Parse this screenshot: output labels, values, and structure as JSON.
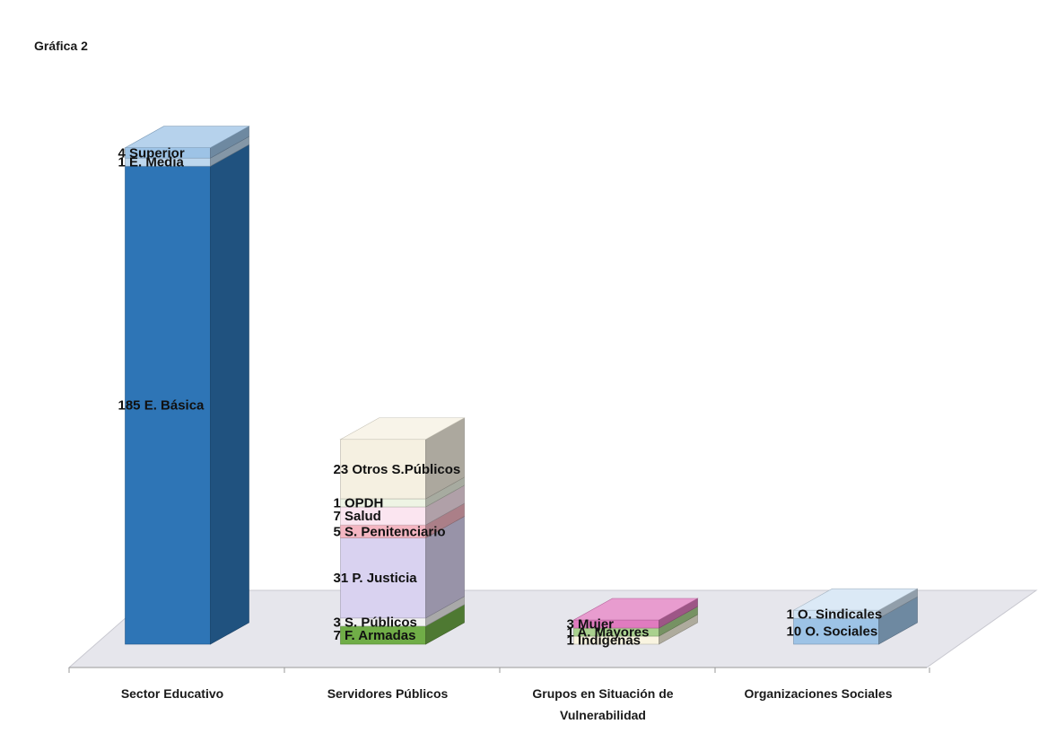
{
  "chart_data": {
    "type": "bar",
    "stacked": true,
    "three_d": true,
    "title": "Gráfica 2",
    "categories": [
      "Sector Educativo",
      "Servidores Públicos",
      "Grupos en Situación de Vulnerabilidad",
      "Organizaciones Sociales"
    ],
    "groups": [
      {
        "category": "Sector Educativo",
        "segments": [
          {
            "name": "E. Básica",
            "value": 185,
            "color": "#2e75b6"
          },
          {
            "name": "E. Media",
            "value": 1,
            "color": "#bdd7ee"
          },
          {
            "name": "Superior",
            "value": 4,
            "color": "#9dc3e6"
          }
        ]
      },
      {
        "category": "Servidores Públicos",
        "segments": [
          {
            "name": "F. Armadas",
            "value": 7,
            "color": "#70ad47"
          },
          {
            "name": "S. Públicos",
            "value": 3,
            "color": "#f2f2f2"
          },
          {
            "name": "P. Justicia",
            "value": 31,
            "color": "#d9d2f0"
          },
          {
            "name": "S. Penitenciario",
            "value": 5,
            "color": "#f4b6c2"
          },
          {
            "name": "Salud",
            "value": 7,
            "color": "#fbe5f0"
          },
          {
            "name": "OPDH",
            "value": 1,
            "color": "#eef4e4"
          },
          {
            "name": "Otros S.Públicos",
            "value": 23,
            "color": "#f5f0e1"
          }
        ]
      },
      {
        "category": "Grupos en Situación de Vulnerabilidad",
        "segments": [
          {
            "name": "Indígenas",
            "value": 1,
            "color": "#f9f4e0"
          },
          {
            "name": "A. Mayores",
            "value": 1,
            "color": "#a9d18e"
          },
          {
            "name": "Mujer",
            "value": 3,
            "color": "#e07bbf"
          }
        ]
      },
      {
        "category": "Organizaciones Sociales",
        "segments": [
          {
            "name": "O. Sociales",
            "value": 10,
            "color": "#9dc3e6"
          },
          {
            "name": "O. Sindicales",
            "value": 1,
            "color": "#cfe2f3"
          }
        ]
      }
    ],
    "grid": false,
    "legend": "none"
  }
}
